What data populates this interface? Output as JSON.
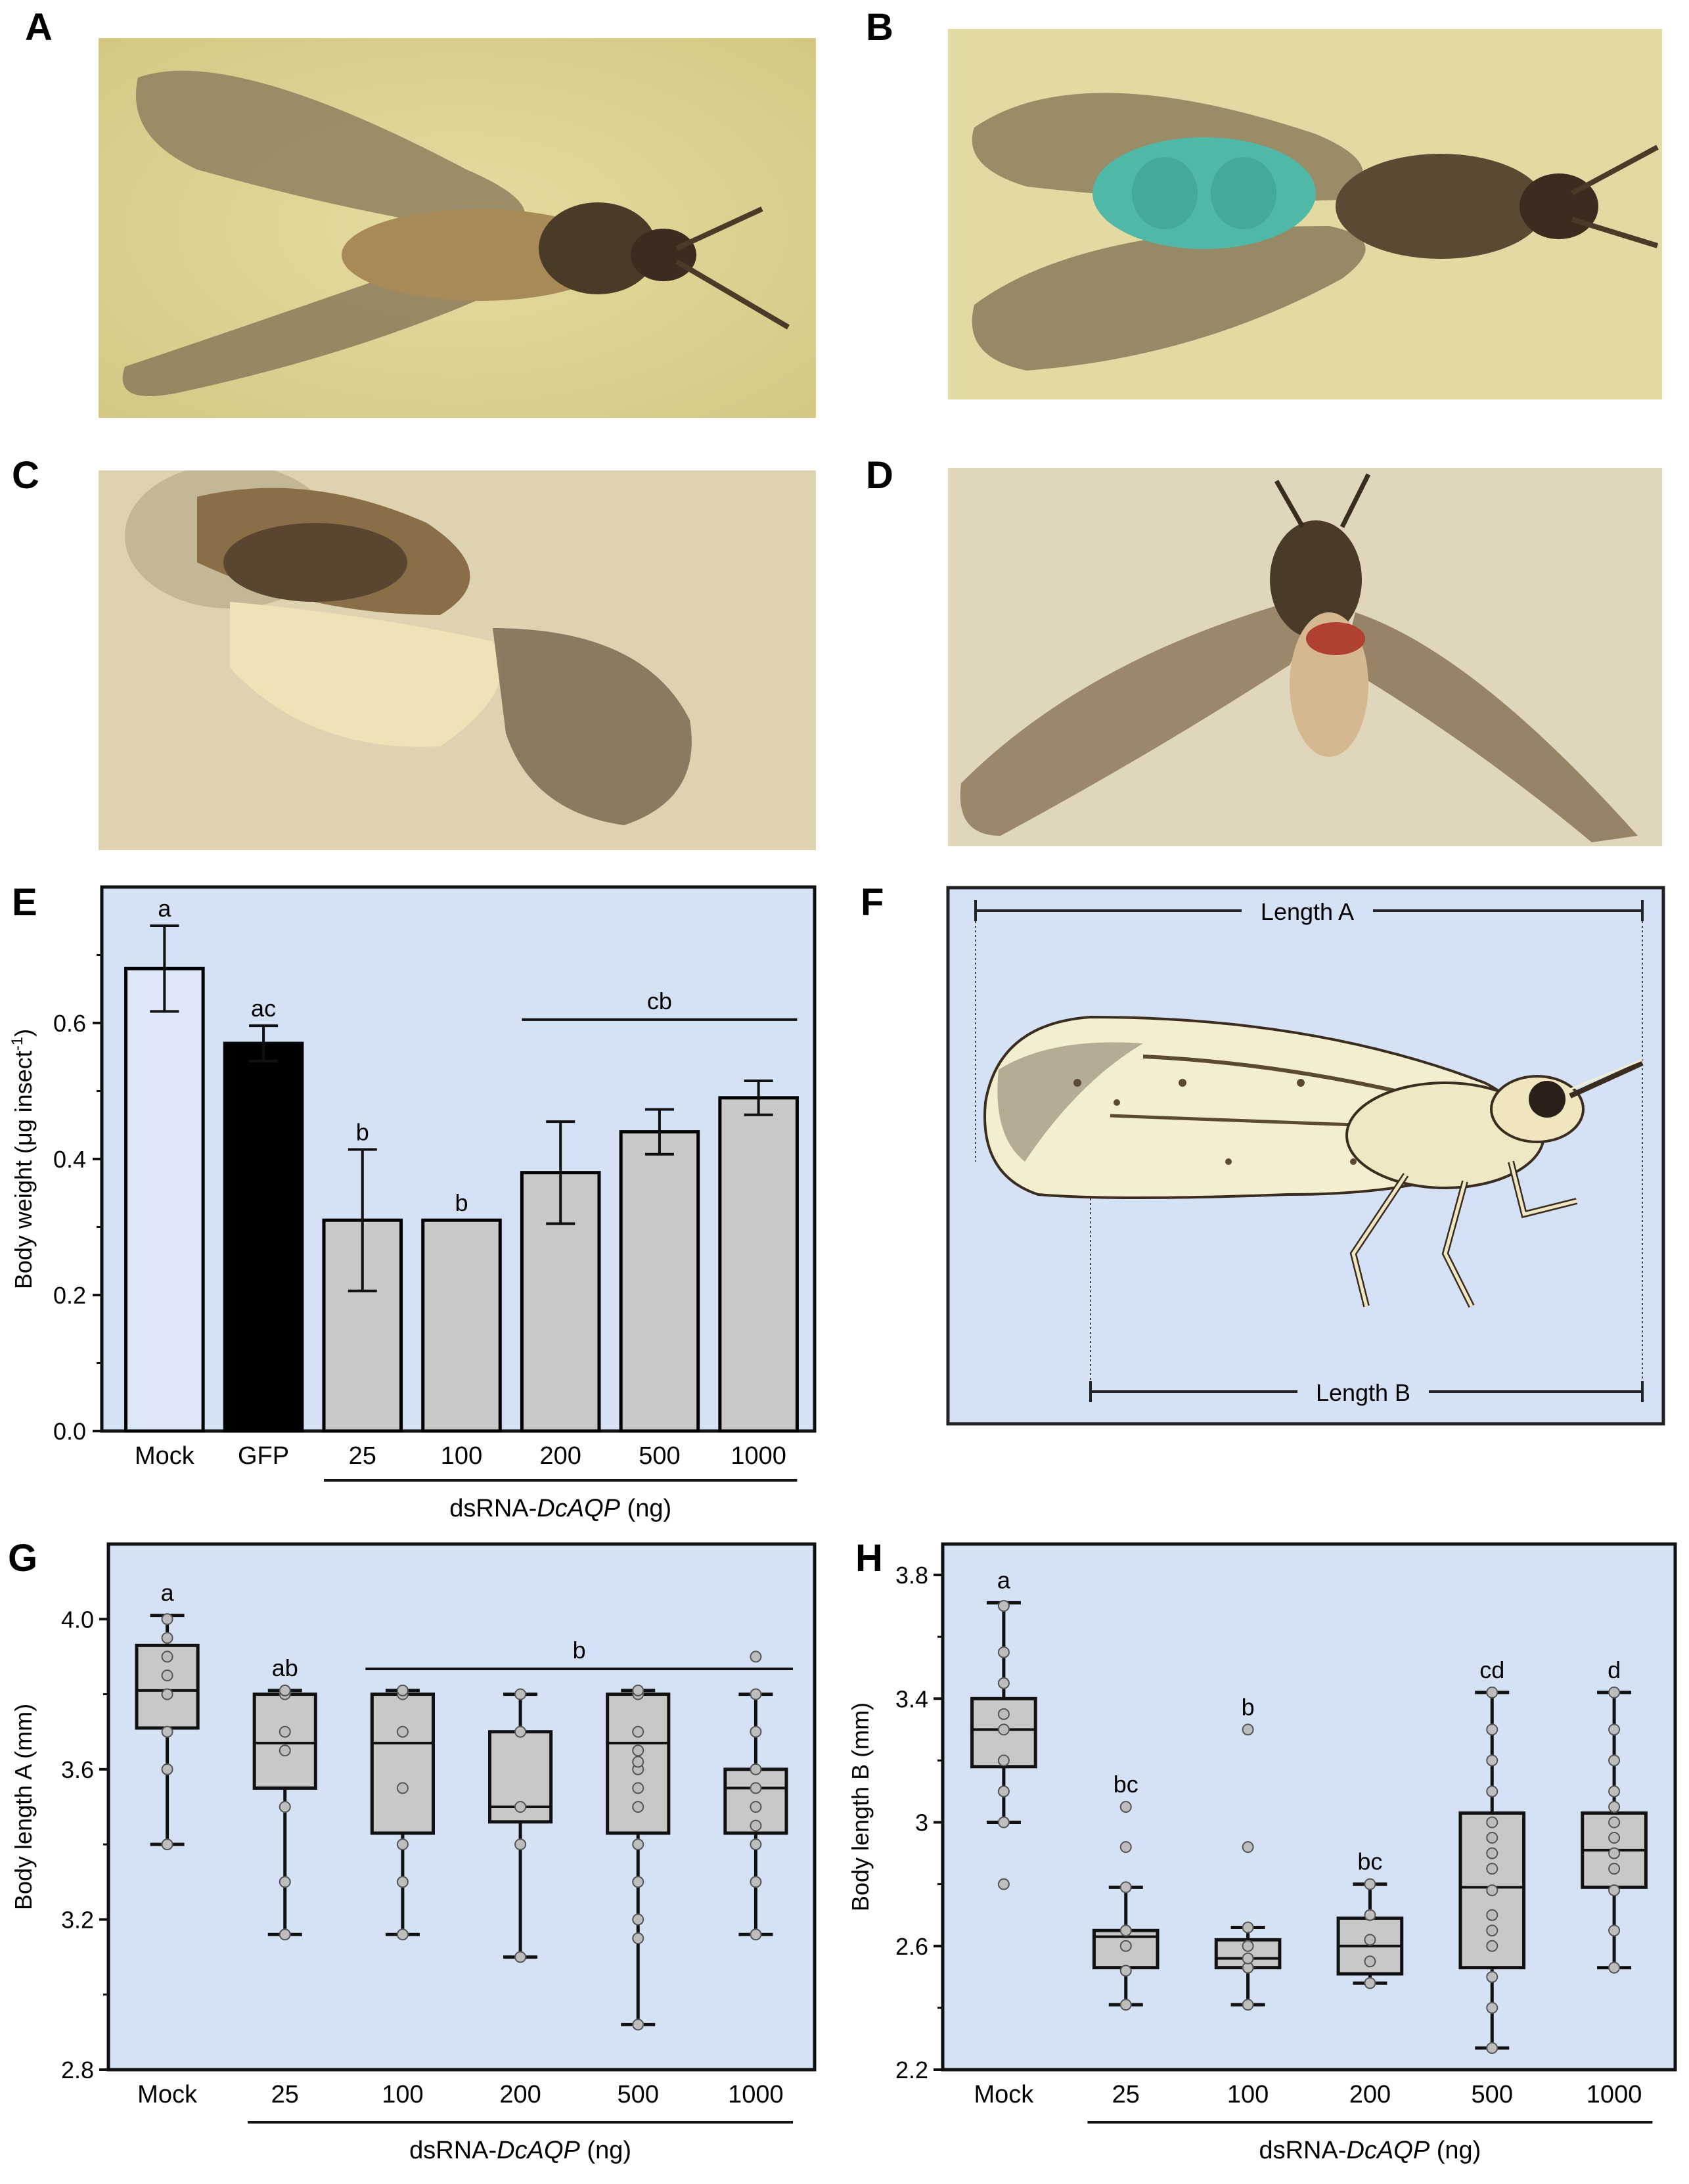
{
  "panels": {
    "A": {
      "label": "A"
    },
    "B": {
      "label": "B"
    },
    "C": {
      "label": "C"
    },
    "D": {
      "label": "D"
    },
    "E": {
      "label": "E"
    },
    "F": {
      "label": "F",
      "length_a": "Length A",
      "length_b": "Length B"
    },
    "G": {
      "label": "G"
    },
    "H": {
      "label": "H"
    }
  },
  "colors": {
    "chart_bg": "#d5e2f5",
    "box_fill": "#c8c8c8",
    "bar_mock": "#dce8f8",
    "bar_gfp": "#000000",
    "bar_dsrna": "#c8c8c8",
    "point": "#bdbdbd"
  },
  "chart_data": [
    {
      "panel": "E",
      "type": "bar",
      "ylabel_main": "Body weight (μg insect",
      "ylabel_sup": "-1",
      "ylabel_end": ")",
      "ylim": [
        0,
        0.8
      ],
      "yticks": [
        "0.0",
        "0.2",
        "0.4",
        "0.6"
      ],
      "categories": [
        "Mock",
        "GFP",
        "25",
        "100",
        "200",
        "500",
        "1000"
      ],
      "values": [
        0.68,
        0.57,
        0.31,
        0.31,
        0.38,
        0.44,
        0.49
      ],
      "errors": [
        0.063,
        0.026,
        0.104,
        0.0,
        0.075,
        0.033,
        0.025
      ],
      "letters": [
        "a",
        "ac",
        "b",
        "b",
        "",
        "",
        ""
      ],
      "group_letter": "cb",
      "group_line_range": [
        4,
        6
      ],
      "xlabel_prefix": "dsRNA-",
      "xlabel_gene": "DcAQP",
      "xlabel_suffix": " (ng)"
    },
    {
      "panel": "G",
      "type": "box",
      "ylabel": "Body length A (mm)",
      "ylim": [
        2.8,
        4.2
      ],
      "yticks": [
        "2.8",
        "3.2",
        "3.6",
        "4.0"
      ],
      "categories": [
        "Mock",
        "25",
        "100",
        "200",
        "500",
        "1000"
      ],
      "boxes": [
        {
          "min": 3.4,
          "q1": 3.71,
          "median": 3.81,
          "q3": 3.93,
          "max": 4.01,
          "points": [
            3.4,
            3.6,
            3.7,
            3.8,
            3.85,
            3.9,
            3.95,
            4.0
          ]
        },
        {
          "min": 3.16,
          "q1": 3.55,
          "median": 3.67,
          "q3": 3.8,
          "max": 3.81,
          "points": [
            3.16,
            3.3,
            3.5,
            3.65,
            3.7,
            3.8,
            3.81
          ]
        },
        {
          "min": 3.16,
          "q1": 3.43,
          "median": 3.67,
          "q3": 3.8,
          "max": 3.81,
          "points": [
            3.16,
            3.3,
            3.4,
            3.55,
            3.7,
            3.8,
            3.81
          ]
        },
        {
          "min": 3.1,
          "q1": 3.46,
          "median": 3.5,
          "q3": 3.7,
          "max": 3.8,
          "points": [
            3.1,
            3.4,
            3.5,
            3.7,
            3.8
          ]
        },
        {
          "min": 2.92,
          "q1": 3.43,
          "median": 3.67,
          "q3": 3.8,
          "max": 3.81,
          "points": [
            2.92,
            3.15,
            3.2,
            3.3,
            3.4,
            3.5,
            3.55,
            3.6,
            3.62,
            3.65,
            3.7,
            3.8,
            3.81
          ]
        },
        {
          "min": 3.16,
          "q1": 3.43,
          "median": 3.55,
          "q3": 3.6,
          "max": 3.8,
          "points": [
            3.16,
            3.3,
            3.4,
            3.45,
            3.5,
            3.55,
            3.6,
            3.7,
            3.8,
            3.9
          ]
        }
      ],
      "letters": [
        "a",
        "ab",
        "",
        "",
        "",
        ""
      ],
      "group_letter": "b",
      "group_line_range": [
        2,
        5
      ],
      "xlabel_prefix": "dsRNA-",
      "xlabel_gene": "DcAQP",
      "xlabel_suffix": " (ng)"
    },
    {
      "panel": "H",
      "type": "box",
      "ylabel": "Body length B (mm)",
      "ylim": [
        2.2,
        3.9
      ],
      "yticks": [
        "2.2",
        "2.6",
        "3",
        "3.4",
        "3.8"
      ],
      "categories": [
        "Mock",
        "25",
        "100",
        "200",
        "500",
        "1000"
      ],
      "boxes": [
        {
          "min": 3.0,
          "q1": 3.18,
          "median": 3.3,
          "q3": 3.4,
          "max": 3.71,
          "points": [
            2.8,
            3.0,
            3.1,
            3.2,
            3.3,
            3.35,
            3.45,
            3.55,
            3.7
          ]
        },
        {
          "min": 2.41,
          "q1": 2.53,
          "median": 2.63,
          "q3": 2.65,
          "max": 2.79,
          "points": [
            2.41,
            2.52,
            2.6,
            2.65,
            2.79,
            2.92,
            3.05
          ]
        },
        {
          "min": 2.41,
          "q1": 2.53,
          "median": 2.56,
          "q3": 2.62,
          "max": 2.66,
          "points": [
            2.41,
            2.53,
            2.56,
            2.6,
            2.66,
            2.92,
            3.3
          ]
        },
        {
          "min": 2.48,
          "q1": 2.51,
          "median": 2.6,
          "q3": 2.69,
          "max": 2.8,
          "points": [
            2.48,
            2.55,
            2.62,
            2.7,
            2.8
          ]
        },
        {
          "min": 2.27,
          "q1": 2.53,
          "median": 2.79,
          "q3": 3.03,
          "max": 3.42,
          "points": [
            2.27,
            2.4,
            2.5,
            2.6,
            2.65,
            2.7,
            2.78,
            2.85,
            2.9,
            2.95,
            3.0,
            3.1,
            3.2,
            3.3,
            3.42
          ]
        },
        {
          "min": 2.53,
          "q1": 2.79,
          "median": 2.91,
          "q3": 3.03,
          "max": 3.42,
          "points": [
            2.53,
            2.65,
            2.78,
            2.85,
            2.9,
            2.95,
            3.0,
            3.05,
            3.1,
            3.2,
            3.3,
            3.42
          ]
        }
      ],
      "letters": [
        "a",
        "bc",
        "b",
        "bc",
        "cd",
        "d"
      ],
      "xlabel_prefix": "dsRNA-",
      "xlabel_gene": "DcAQP",
      "xlabel_suffix": " (ng)"
    }
  ]
}
